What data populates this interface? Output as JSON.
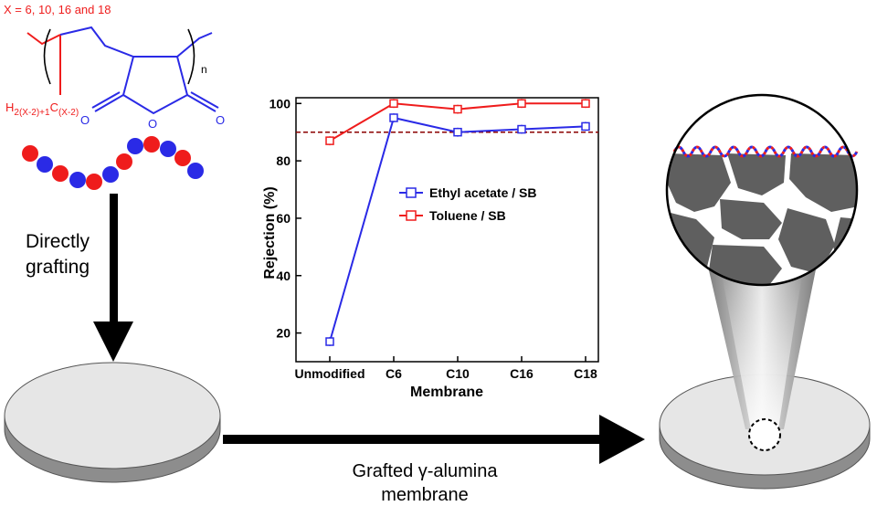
{
  "molecule": {
    "x_label": "X = 6, 10, 16 and 18",
    "subscript_n": "n",
    "side_chain_H": "H",
    "side_chain_H_sub": "2(X-2)+1",
    "side_chain_C": "C",
    "side_chain_C_sub": "(X-2)",
    "oxygen": "O"
  },
  "process": {
    "step_line1": "Directly",
    "step_line2": "grafting",
    "result_line1": "Grafted γ-alumina",
    "result_line2": "membrane"
  },
  "colors": {
    "red": "#ef1c1c",
    "blue": "#2a2ae6",
    "dashed_ref": "#8b0000",
    "disk_top": "#e6e6e6",
    "pore_dark": "#5f5f5f"
  },
  "chart_data": {
    "type": "line",
    "xlabel": "Membrane",
    "ylabel": "Rejection (%)",
    "categories": [
      "Unmodified",
      "C6",
      "C10",
      "C16",
      "C18"
    ],
    "ylim": [
      10,
      102
    ],
    "yticks": [
      "20",
      "40",
      "60",
      "80",
      "100"
    ],
    "reference_line": 90,
    "legend_position": "center-right",
    "series": [
      {
        "name": "Ethyl acetate / SB",
        "color": "#2a2ae6",
        "values": [
          17,
          95,
          90,
          91,
          92
        ]
      },
      {
        "name": "Toluene / SB",
        "color": "#ef1c1c",
        "values": [
          87,
          100,
          98,
          100,
          100
        ]
      }
    ]
  }
}
